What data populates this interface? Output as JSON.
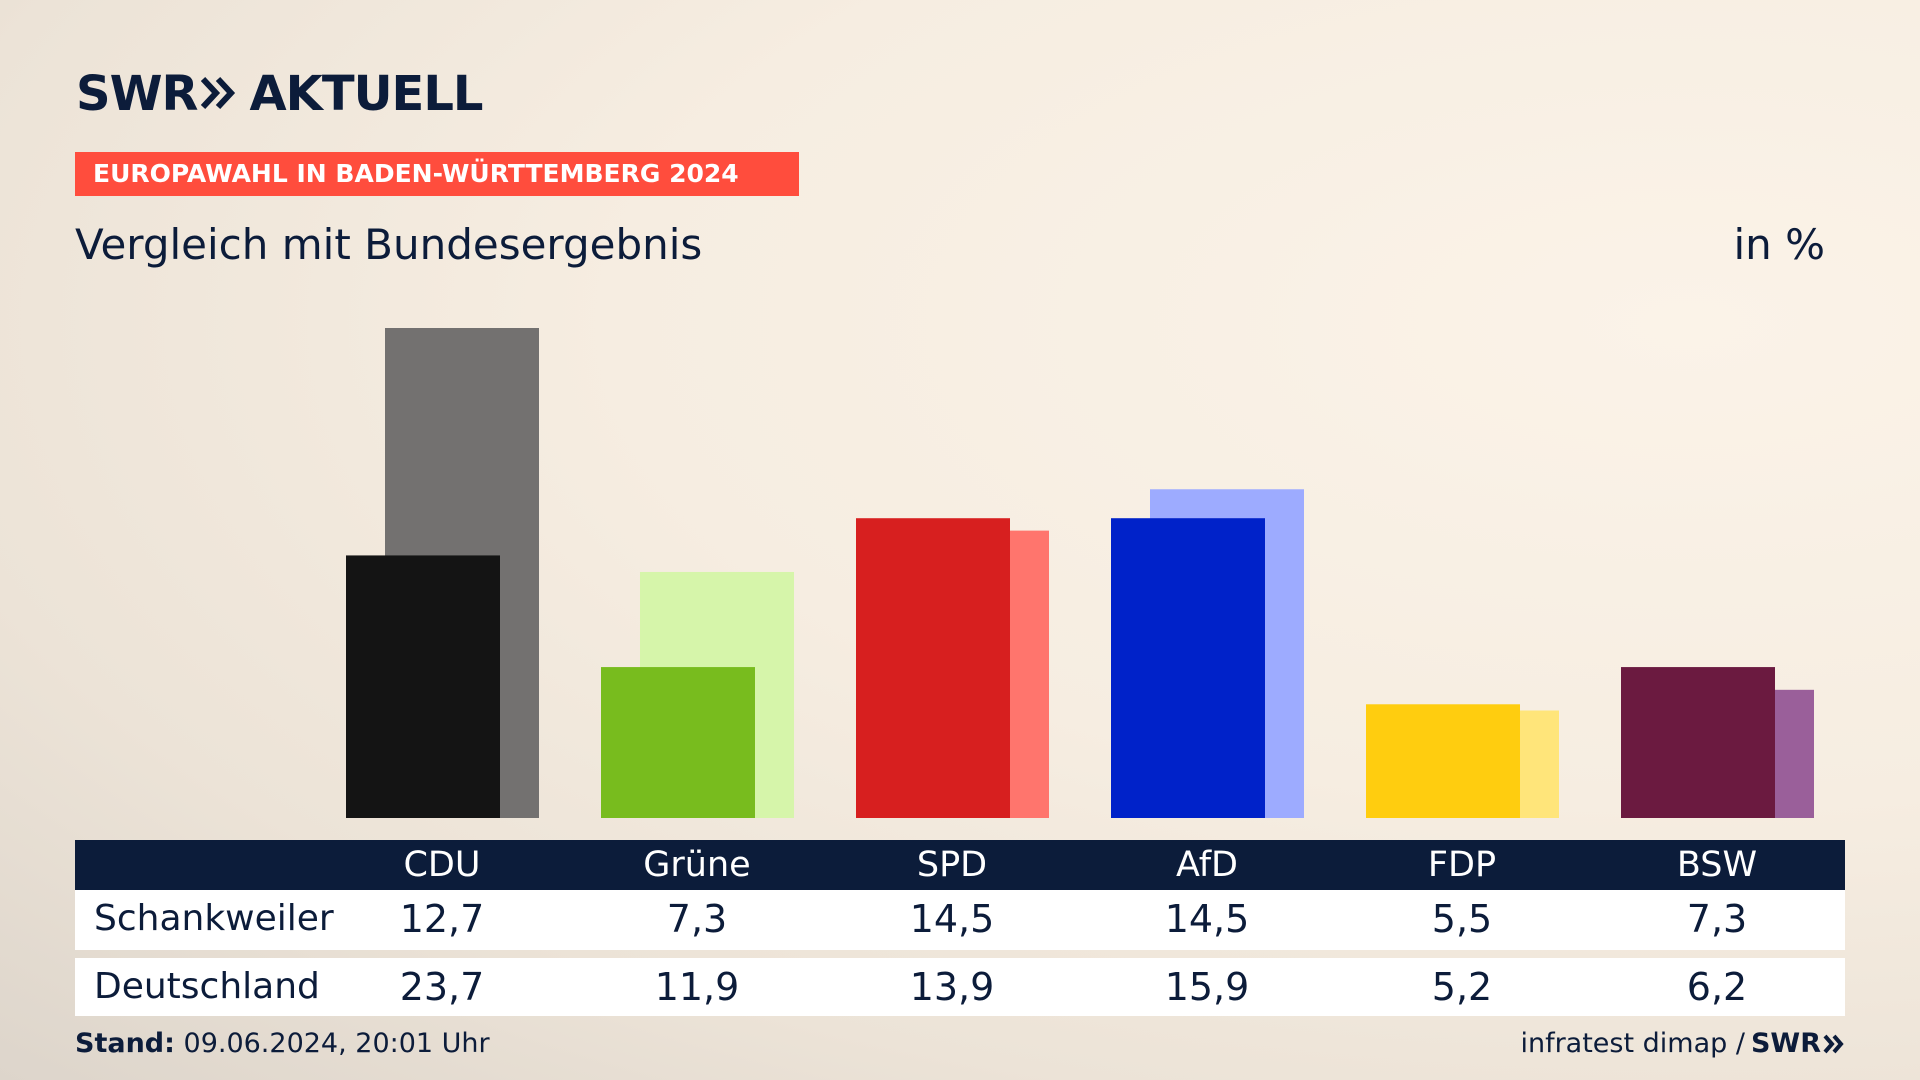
{
  "brand": {
    "name": "SWR",
    "suffix": "AKTUELL"
  },
  "banner": "EUROPAWAHL IN BADEN-WÜRTTEMBERG 2024",
  "subtitle": "Vergleich mit Bundesergebnis",
  "unit": "in %",
  "table": {
    "headers": [
      "CDU",
      "Grüne",
      "SPD",
      "AfD",
      "FDP",
      "BSW"
    ],
    "rows": [
      {
        "label": "Schankweiler",
        "values": [
          "12,7",
          "7,3",
          "14,5",
          "14,5",
          "5,5",
          "7,3"
        ]
      },
      {
        "label": "Deutschland",
        "values": [
          "23,7",
          "11,9",
          "13,9",
          "15,9",
          "5,2",
          "6,2"
        ]
      }
    ]
  },
  "footer": {
    "stand_label": "Stand:",
    "stand_value": "09.06.2024, 20:01 Uhr",
    "source": "infratest dimap /",
    "source_brand": "SWR"
  },
  "chart_data": {
    "type": "bar",
    "categories": [
      "CDU",
      "Grüne",
      "SPD",
      "AfD",
      "FDP",
      "BSW"
    ],
    "series": [
      {
        "name": "Schankweiler",
        "values": [
          12.7,
          7.3,
          14.5,
          14.5,
          5.5,
          7.3
        ],
        "colors": [
          "#141414",
          "#78bc1e",
          "#d71f1f",
          "#0022c9",
          "#ffcd0f",
          "#6b1a40"
        ]
      },
      {
        "name": "Deutschland",
        "values": [
          23.7,
          11.9,
          13.9,
          15.9,
          5.2,
          6.2
        ],
        "colors": [
          "#737170",
          "#d6f5aa",
          "#ff756d",
          "#9dabff",
          "#ffe57a",
          "#9a5f9a"
        ]
      }
    ],
    "ylim": [
      0,
      23.7
    ]
  }
}
